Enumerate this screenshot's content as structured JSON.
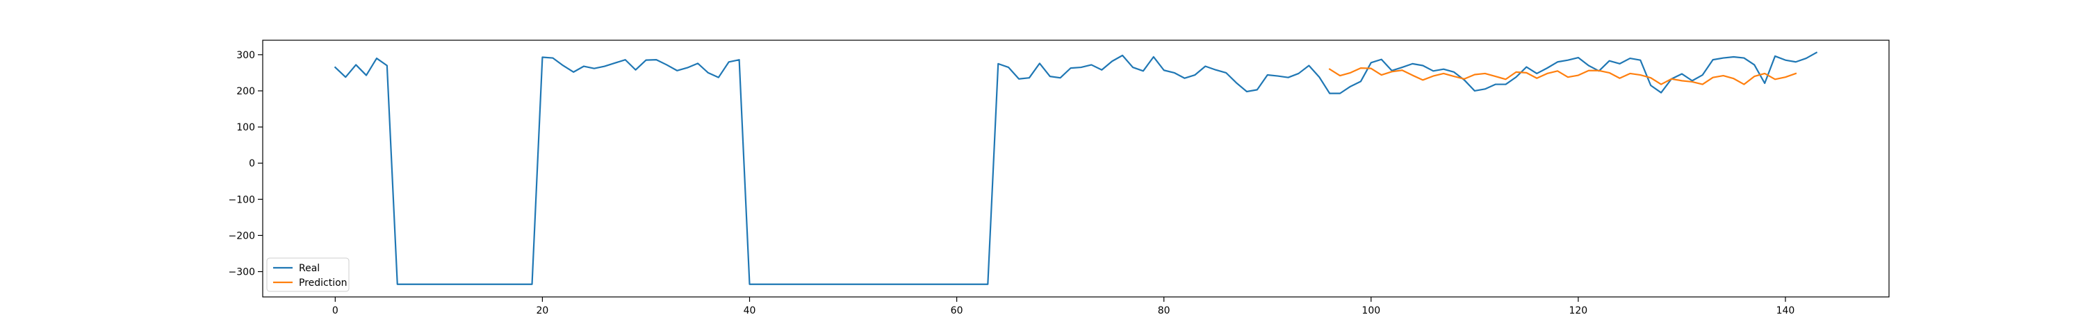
{
  "chart_data": {
    "type": "line",
    "title": "",
    "xlabel": "",
    "ylabel": "",
    "xlim": [
      -7,
      150
    ],
    "ylim": [
      -370,
      340
    ],
    "xticks": [
      0,
      20,
      40,
      60,
      80,
      100,
      120,
      140
    ],
    "yticks": [
      -300,
      -200,
      -100,
      0,
      100,
      200,
      300
    ],
    "grid": false,
    "legend_position": "lower-left",
    "series": [
      {
        "name": "Real",
        "color": "#1f77b4",
        "x_start": 0,
        "values": [
          265,
          238,
          272,
          243,
          290,
          270,
          -335,
          -335,
          -335,
          -335,
          -335,
          -335,
          -335,
          -335,
          -335,
          -335,
          -335,
          -335,
          -335,
          -335,
          293,
          291,
          270,
          252,
          268,
          262,
          268,
          277,
          286,
          258,
          285,
          286,
          272,
          256,
          264,
          276,
          250,
          237,
          280,
          286,
          -335,
          -335,
          -335,
          -335,
          -335,
          -335,
          -335,
          -335,
          -335,
          -335,
          -335,
          -335,
          -335,
          -335,
          -335,
          -335,
          -335,
          -335,
          -335,
          -335,
          -335,
          -335,
          -335,
          -335,
          275,
          265,
          233,
          236,
          276,
          240,
          236,
          263,
          265,
          272,
          258,
          282,
          298,
          265,
          255,
          294,
          257,
          250,
          235,
          244,
          268,
          258,
          250,
          222,
          198,
          203,
          244,
          241,
          237,
          248,
          270,
          238,
          193,
          193,
          212,
          226,
          278,
          287,
          256,
          265,
          275,
          270,
          255,
          260,
          252,
          230,
          200,
          205,
          218,
          218,
          238,
          266,
          248,
          263,
          280,
          285,
          292,
          270,
          255,
          283,
          275,
          290,
          285,
          215,
          195,
          233,
          247,
          228,
          244,
          286,
          291,
          294,
          291,
          272,
          221,
          296,
          285,
          280,
          290,
          306
        ]
      },
      {
        "name": "Prediction",
        "color": "#ff7f0e",
        "x_start": 96,
        "values": [
          260,
          242,
          250,
          263,
          262,
          244,
          253,
          257,
          243,
          230,
          241,
          248,
          240,
          233,
          245,
          248,
          240,
          232,
          252,
          250,
          235,
          248,
          255,
          238,
          243,
          256,
          256,
          250,
          235,
          248,
          244,
          236,
          218,
          233,
          228,
          225,
          218,
          237,
          242,
          234,
          218,
          240,
          248,
          232,
          238,
          248
        ]
      }
    ]
  }
}
